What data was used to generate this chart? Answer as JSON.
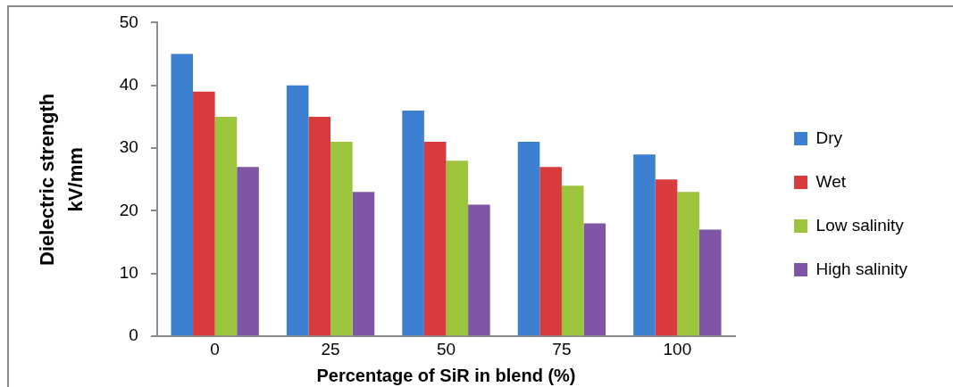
{
  "chart_data": {
    "type": "bar",
    "xlabel": "Percentage of SiR in blend (%)",
    "ylabel": "Dielectric strength\nkV/mm",
    "categories": [
      "0",
      "25",
      "50",
      "75",
      "100"
    ],
    "series": [
      {
        "name": "Dry",
        "color": "#3d7fd0",
        "values": [
          45,
          40,
          36,
          31,
          29
        ]
      },
      {
        "name": "Wet",
        "color": "#d83b3b",
        "values": [
          39,
          35,
          31,
          27,
          25
        ]
      },
      {
        "name": "Low salinity",
        "color": "#9cc43c",
        "values": [
          35,
          31,
          28,
          24,
          23
        ]
      },
      {
        "name": "High salinity",
        "color": "#7f55a5",
        "values": [
          27,
          23,
          21,
          18,
          17
        ]
      }
    ],
    "ylim": [
      0,
      50
    ],
    "yticks": [
      0,
      10,
      20,
      30,
      40,
      50
    ],
    "grid": false,
    "legend": "right"
  }
}
